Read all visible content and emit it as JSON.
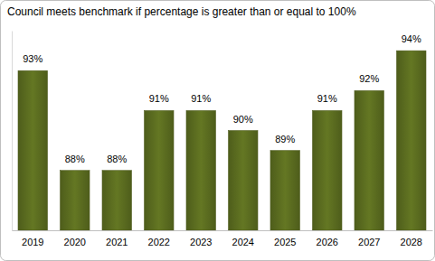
{
  "chart_data": {
    "type": "bar",
    "title": "Council meets benchmark if percentage is greater than or equal to 100%",
    "categories": [
      "2019",
      "2020",
      "2021",
      "2022",
      "2023",
      "2024",
      "2025",
      "2026",
      "2027",
      "2028"
    ],
    "values": [
      93,
      88,
      88,
      91,
      91,
      90,
      89,
      91,
      92,
      94
    ],
    "value_labels": [
      "93%",
      "88%",
      "88%",
      "91%",
      "91%",
      "90%",
      "89%",
      "91%",
      "92%",
      "94%"
    ],
    "data_labels": true,
    "color": "#5a6b1f",
    "ylim": [
      85,
      95
    ],
    "tick_labels": "x"
  }
}
